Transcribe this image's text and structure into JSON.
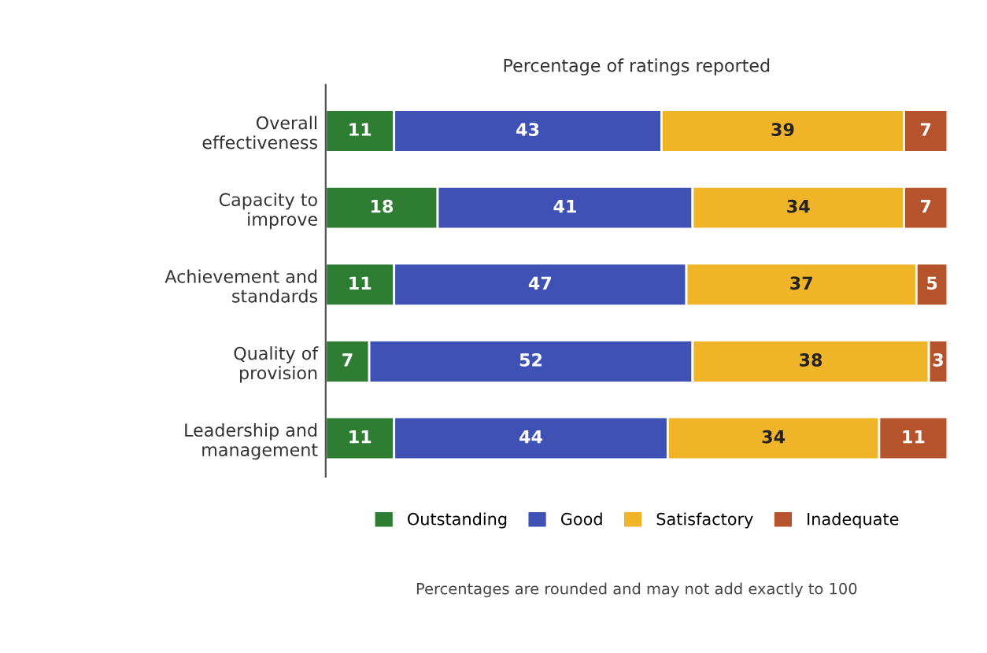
{
  "chart_data": {
    "type": "bar",
    "orientation": "horizontal",
    "stacked": true,
    "data_labels": true,
    "grid": false,
    "legend": "bottom",
    "tick_labels": "y",
    "title": "Percentage of ratings reported",
    "categories": [
      "Overall\neffectiveness",
      "Capacity to\nimprove",
      "Achievement and\nstandards",
      "Quality of\nprovision",
      "Leadership and\nmanagement"
    ],
    "xlim": [
      0,
      100
    ],
    "series": [
      {
        "name": "Outstanding",
        "color": "#2e7d32",
        "values": [
          11,
          18,
          11,
          7,
          11
        ]
      },
      {
        "name": "Good",
        "color": "#3f51b5",
        "values": [
          43,
          41,
          47,
          52,
          44
        ]
      },
      {
        "name": "Satisfactory",
        "color": "#f0b428",
        "values": [
          39,
          34,
          37,
          38,
          34
        ]
      },
      {
        "name": "Inadequate",
        "color": "#b5532c",
        "values": [
          7,
          7,
          5,
          3,
          11
        ]
      }
    ],
    "annotations": [
      "Percentages are rounded and may not add exactly to 100"
    ]
  }
}
